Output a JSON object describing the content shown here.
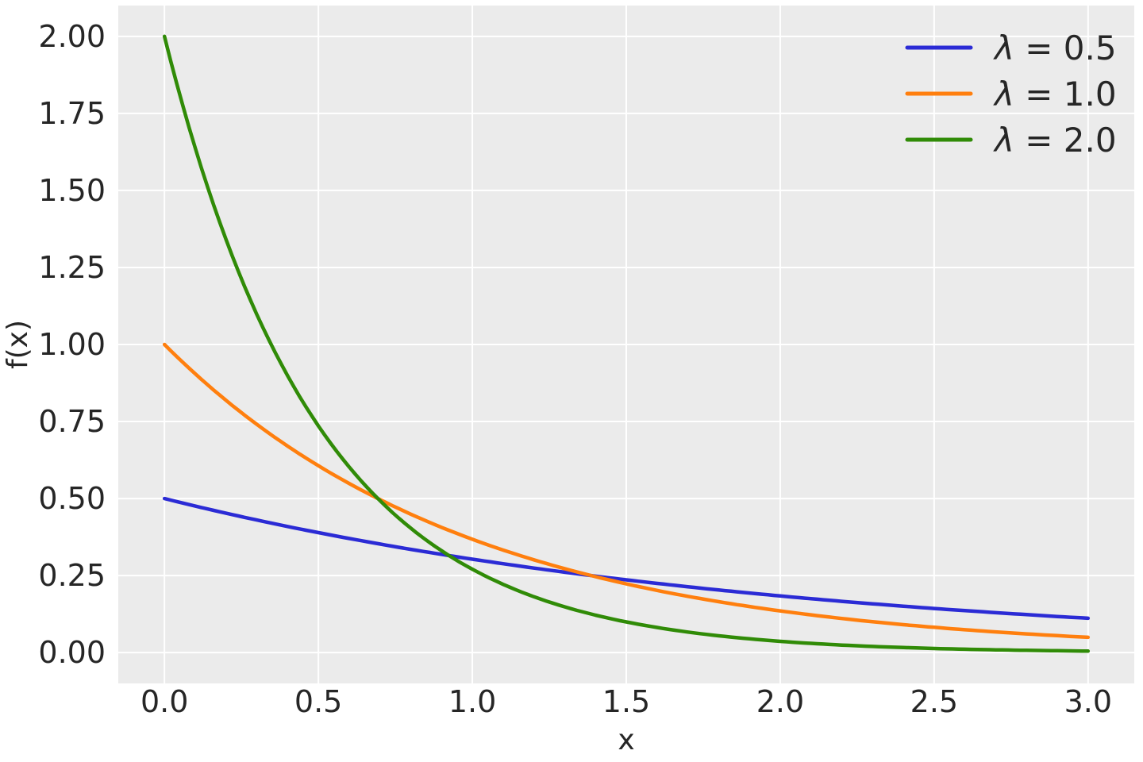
{
  "chart_data": {
    "type": "line",
    "title": "",
    "xlabel": "x",
    "ylabel": "f(x)",
    "function": "f(x) = λ·exp(−λ·x)  (exponential distribution PDF)",
    "x_range": [
      0,
      3
    ],
    "xlim": [
      -0.15,
      3.15
    ],
    "ylim": [
      -0.1,
      2.1
    ],
    "x_ticks": [
      0.0,
      0.5,
      1.0,
      1.5,
      2.0,
      2.5,
      3.0
    ],
    "x_tick_labels": [
      "0.0",
      "0.5",
      "1.0",
      "1.5",
      "2.0",
      "2.5",
      "3.0"
    ],
    "y_ticks": [
      0.0,
      0.25,
      0.5,
      0.75,
      1.0,
      1.25,
      1.5,
      1.75,
      2.0
    ],
    "y_tick_labels": [
      "0.00",
      "0.25",
      "0.50",
      "0.75",
      "1.00",
      "1.25",
      "1.50",
      "1.75",
      "2.00"
    ],
    "grid": true,
    "legend_position": "upper right",
    "x": [
      0.0,
      0.1,
      0.2,
      0.3,
      0.4,
      0.5,
      0.6,
      0.7,
      0.8,
      0.9,
      1.0,
      1.1,
      1.2,
      1.3,
      1.4,
      1.5,
      1.6,
      1.7,
      1.8,
      1.9,
      2.0,
      2.1,
      2.2,
      2.3,
      2.4,
      2.5,
      2.6,
      2.7,
      2.8,
      2.9,
      3.0
    ],
    "series": [
      {
        "label": "λ = 0.5",
        "lambda": 0.5,
        "color": "#2b2bd5",
        "values": [
          0.5,
          0.4756,
          0.4524,
          0.4304,
          0.4094,
          0.3894,
          0.3704,
          0.3523,
          0.3352,
          0.3188,
          0.3033,
          0.2885,
          0.2744,
          0.261,
          0.2483,
          0.2362,
          0.2247,
          0.2137,
          0.2033,
          0.1934,
          0.1839,
          0.175,
          0.1665,
          0.1583,
          0.1506,
          0.1433,
          0.1363,
          0.1296,
          0.1233,
          0.1173,
          0.1116
        ]
      },
      {
        "label": "λ = 1.0",
        "lambda": 1.0,
        "color": "#ff7f0e",
        "values": [
          1.0,
          0.9048,
          0.8187,
          0.7408,
          0.6703,
          0.6065,
          0.5488,
          0.4966,
          0.4493,
          0.4066,
          0.3679,
          0.3329,
          0.3012,
          0.2725,
          0.2466,
          0.2231,
          0.2019,
          0.1827,
          0.1653,
          0.1496,
          0.1353,
          0.1225,
          0.1108,
          0.1003,
          0.0907,
          0.0821,
          0.0743,
          0.0672,
          0.0608,
          0.055,
          0.0498
        ]
      },
      {
        "label": "λ = 2.0",
        "lambda": 2.0,
        "color": "#308b07",
        "values": [
          2.0,
          1.6375,
          1.3406,
          1.0976,
          0.8987,
          0.7358,
          0.6024,
          0.4932,
          0.4038,
          0.3306,
          0.2707,
          0.2216,
          0.1814,
          0.1485,
          0.1216,
          0.0996,
          0.0815,
          0.0667,
          0.0546,
          0.0447,
          0.0366,
          0.03,
          0.0245,
          0.0201,
          0.0164,
          0.0135,
          0.011,
          0.009,
          0.0074,
          0.0061,
          0.005
        ]
      }
    ],
    "styles": {
      "axes_background": "#ebebeb",
      "grid_color": "#ffffff",
      "text_color": "#262626",
      "line_width": 4.5
    }
  }
}
